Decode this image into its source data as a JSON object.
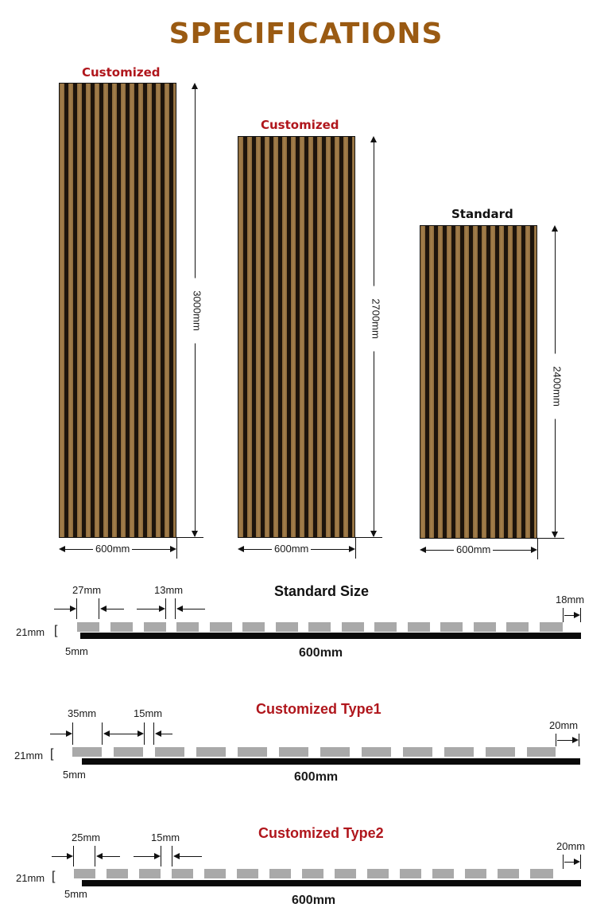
{
  "title": "SPECIFICATIONS",
  "panels": [
    {
      "label": "Customized",
      "height": "3000mm",
      "width": "600mm",
      "label_color": "#b0161c"
    },
    {
      "label": "Customized",
      "height": "2700mm",
      "width": "600mm",
      "label_color": "#b0161c"
    },
    {
      "label": "Standard",
      "height": "2400mm",
      "width": "600mm",
      "label_color": "#111111"
    }
  ],
  "sections": [
    {
      "title": "Standard Size",
      "title_color": "#111111",
      "slat_width": "27mm",
      "gap": "13mm",
      "edge": "18mm",
      "thickness": "21mm",
      "offset": "5mm",
      "total": "600mm"
    },
    {
      "title": "Customized Type1",
      "title_color": "#b0161c",
      "slat_width": "35mm",
      "gap": "15mm",
      "edge": "20mm",
      "thickness": "21mm",
      "offset": "5mm",
      "total": "600mm"
    },
    {
      "title": "Customized Type2",
      "title_color": "#b0161c",
      "slat_width": "25mm",
      "gap": "15mm",
      "edge": "20mm",
      "thickness": "21mm",
      "offset": "5mm",
      "total": "600mm"
    }
  ],
  "colors": {
    "brand": "#9a5a12",
    "slat": "#a9a9a9",
    "base": "#0a0a0a"
  }
}
